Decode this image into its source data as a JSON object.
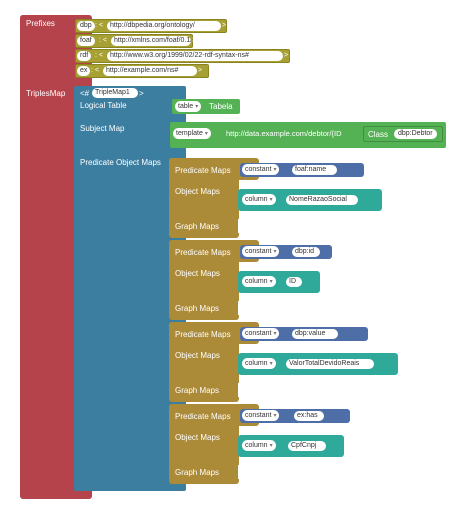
{
  "prefixes": {
    "label": "Prefixes",
    "rows": [
      {
        "prefix": "dbp",
        "uri": "http://dbpedia.org/ontology/"
      },
      {
        "prefix": "foaf",
        "uri": "http://xmlns.com/foaf/0.1/"
      },
      {
        "prefix": "rdf",
        "uri": "http://www.w3.org/1999/02/22-rdf-syntax-ns#"
      },
      {
        "prefix": "ex",
        "uri": "http://example.com/ns#"
      }
    ]
  },
  "triples_map": {
    "label": "TriplesMap",
    "name_prefix": "<#",
    "name": "TripleMap1",
    "name_suffix": ">",
    "logical_table": {
      "label": "Logical Table",
      "type": "table",
      "value": "Tabela"
    },
    "subject_map": {
      "label": "Subject Map",
      "type": "template",
      "template": "http://data.example.com/debtor/{ID",
      "class_label": "Class",
      "class_value": "dbp:Debtor"
    },
    "pom_label": "Predicate Object Maps",
    "poms": [
      {
        "predicate_label": "Predicate Maps",
        "predicate_type": "constant",
        "predicate_value": "foaf:name",
        "object_label": "Object Maps",
        "object_type": "column",
        "object_value": "NomeRazaoSocial",
        "graph_label": "Graph Maps"
      },
      {
        "predicate_label": "Predicate Maps",
        "predicate_type": "constant",
        "predicate_value": "dbp:id",
        "object_label": "Object Maps",
        "object_type": "column",
        "object_value": "ID",
        "graph_label": "Graph Maps"
      },
      {
        "predicate_label": "Predicate Maps",
        "predicate_type": "constant",
        "predicate_value": "dbp:value",
        "object_label": "Object Maps",
        "object_type": "column",
        "object_value": "ValorTotalDevidoReais",
        "graph_label": "Graph Maps"
      },
      {
        "predicate_label": "Predicate Maps",
        "predicate_type": "constant",
        "predicate_value": "ex:has",
        "object_label": "Object Maps",
        "object_type": "column",
        "object_value": "CpfCnpj",
        "graph_label": "Graph Maps"
      }
    ]
  },
  "colors": {
    "prefixes_block": "#b5434b",
    "prefix_row": "#a7a133",
    "triples_map_block": "#3c7ea0",
    "pom_block": "#ab8a38",
    "logical_table": "#55b254",
    "subject_map": "#55b254",
    "constant": "#4e6ea8",
    "column": "#2faa9a"
  }
}
